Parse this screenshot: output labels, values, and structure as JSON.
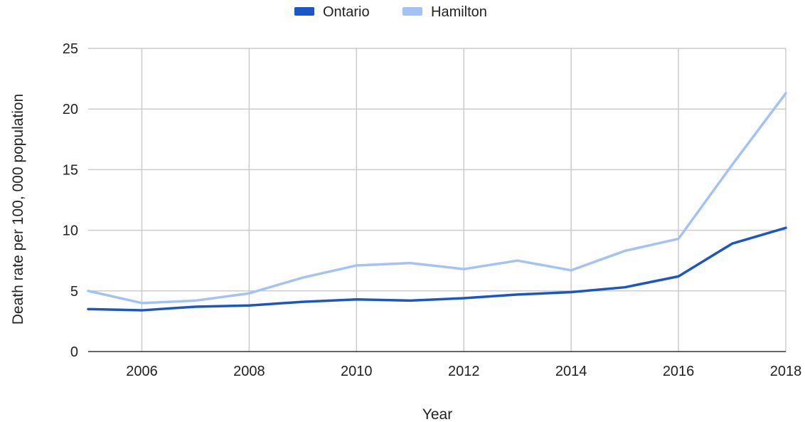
{
  "chart_data": {
    "type": "line",
    "title": "",
    "xlabel": "Year",
    "ylabel": "Death rate per 100, 000 population",
    "x": [
      2005,
      2006,
      2007,
      2008,
      2009,
      2010,
      2011,
      2012,
      2013,
      2014,
      2015,
      2016,
      2017,
      2018
    ],
    "x_ticks": [
      2006,
      2008,
      2010,
      2012,
      2014,
      2016,
      2018
    ],
    "y_ticks": [
      0,
      5,
      10,
      15,
      20,
      25
    ],
    "xlim": [
      2005,
      2018
    ],
    "ylim": [
      0,
      25
    ],
    "grid": true,
    "legend_position": "top-center",
    "series": [
      {
        "name": "Ontario",
        "color": "#1a56c7",
        "values": [
          3.5,
          3.4,
          3.7,
          3.8,
          4.1,
          4.3,
          4.2,
          4.4,
          4.7,
          4.9,
          5.3,
          6.2,
          8.9,
          10.2
        ]
      },
      {
        "name": "Hamilton",
        "color": "#a4c2f4",
        "values": [
          5.0,
          4.0,
          4.2,
          4.8,
          6.1,
          7.1,
          7.3,
          6.8,
          7.5,
          6.7,
          8.3,
          9.3,
          15.4,
          21.3
        ]
      }
    ]
  }
}
